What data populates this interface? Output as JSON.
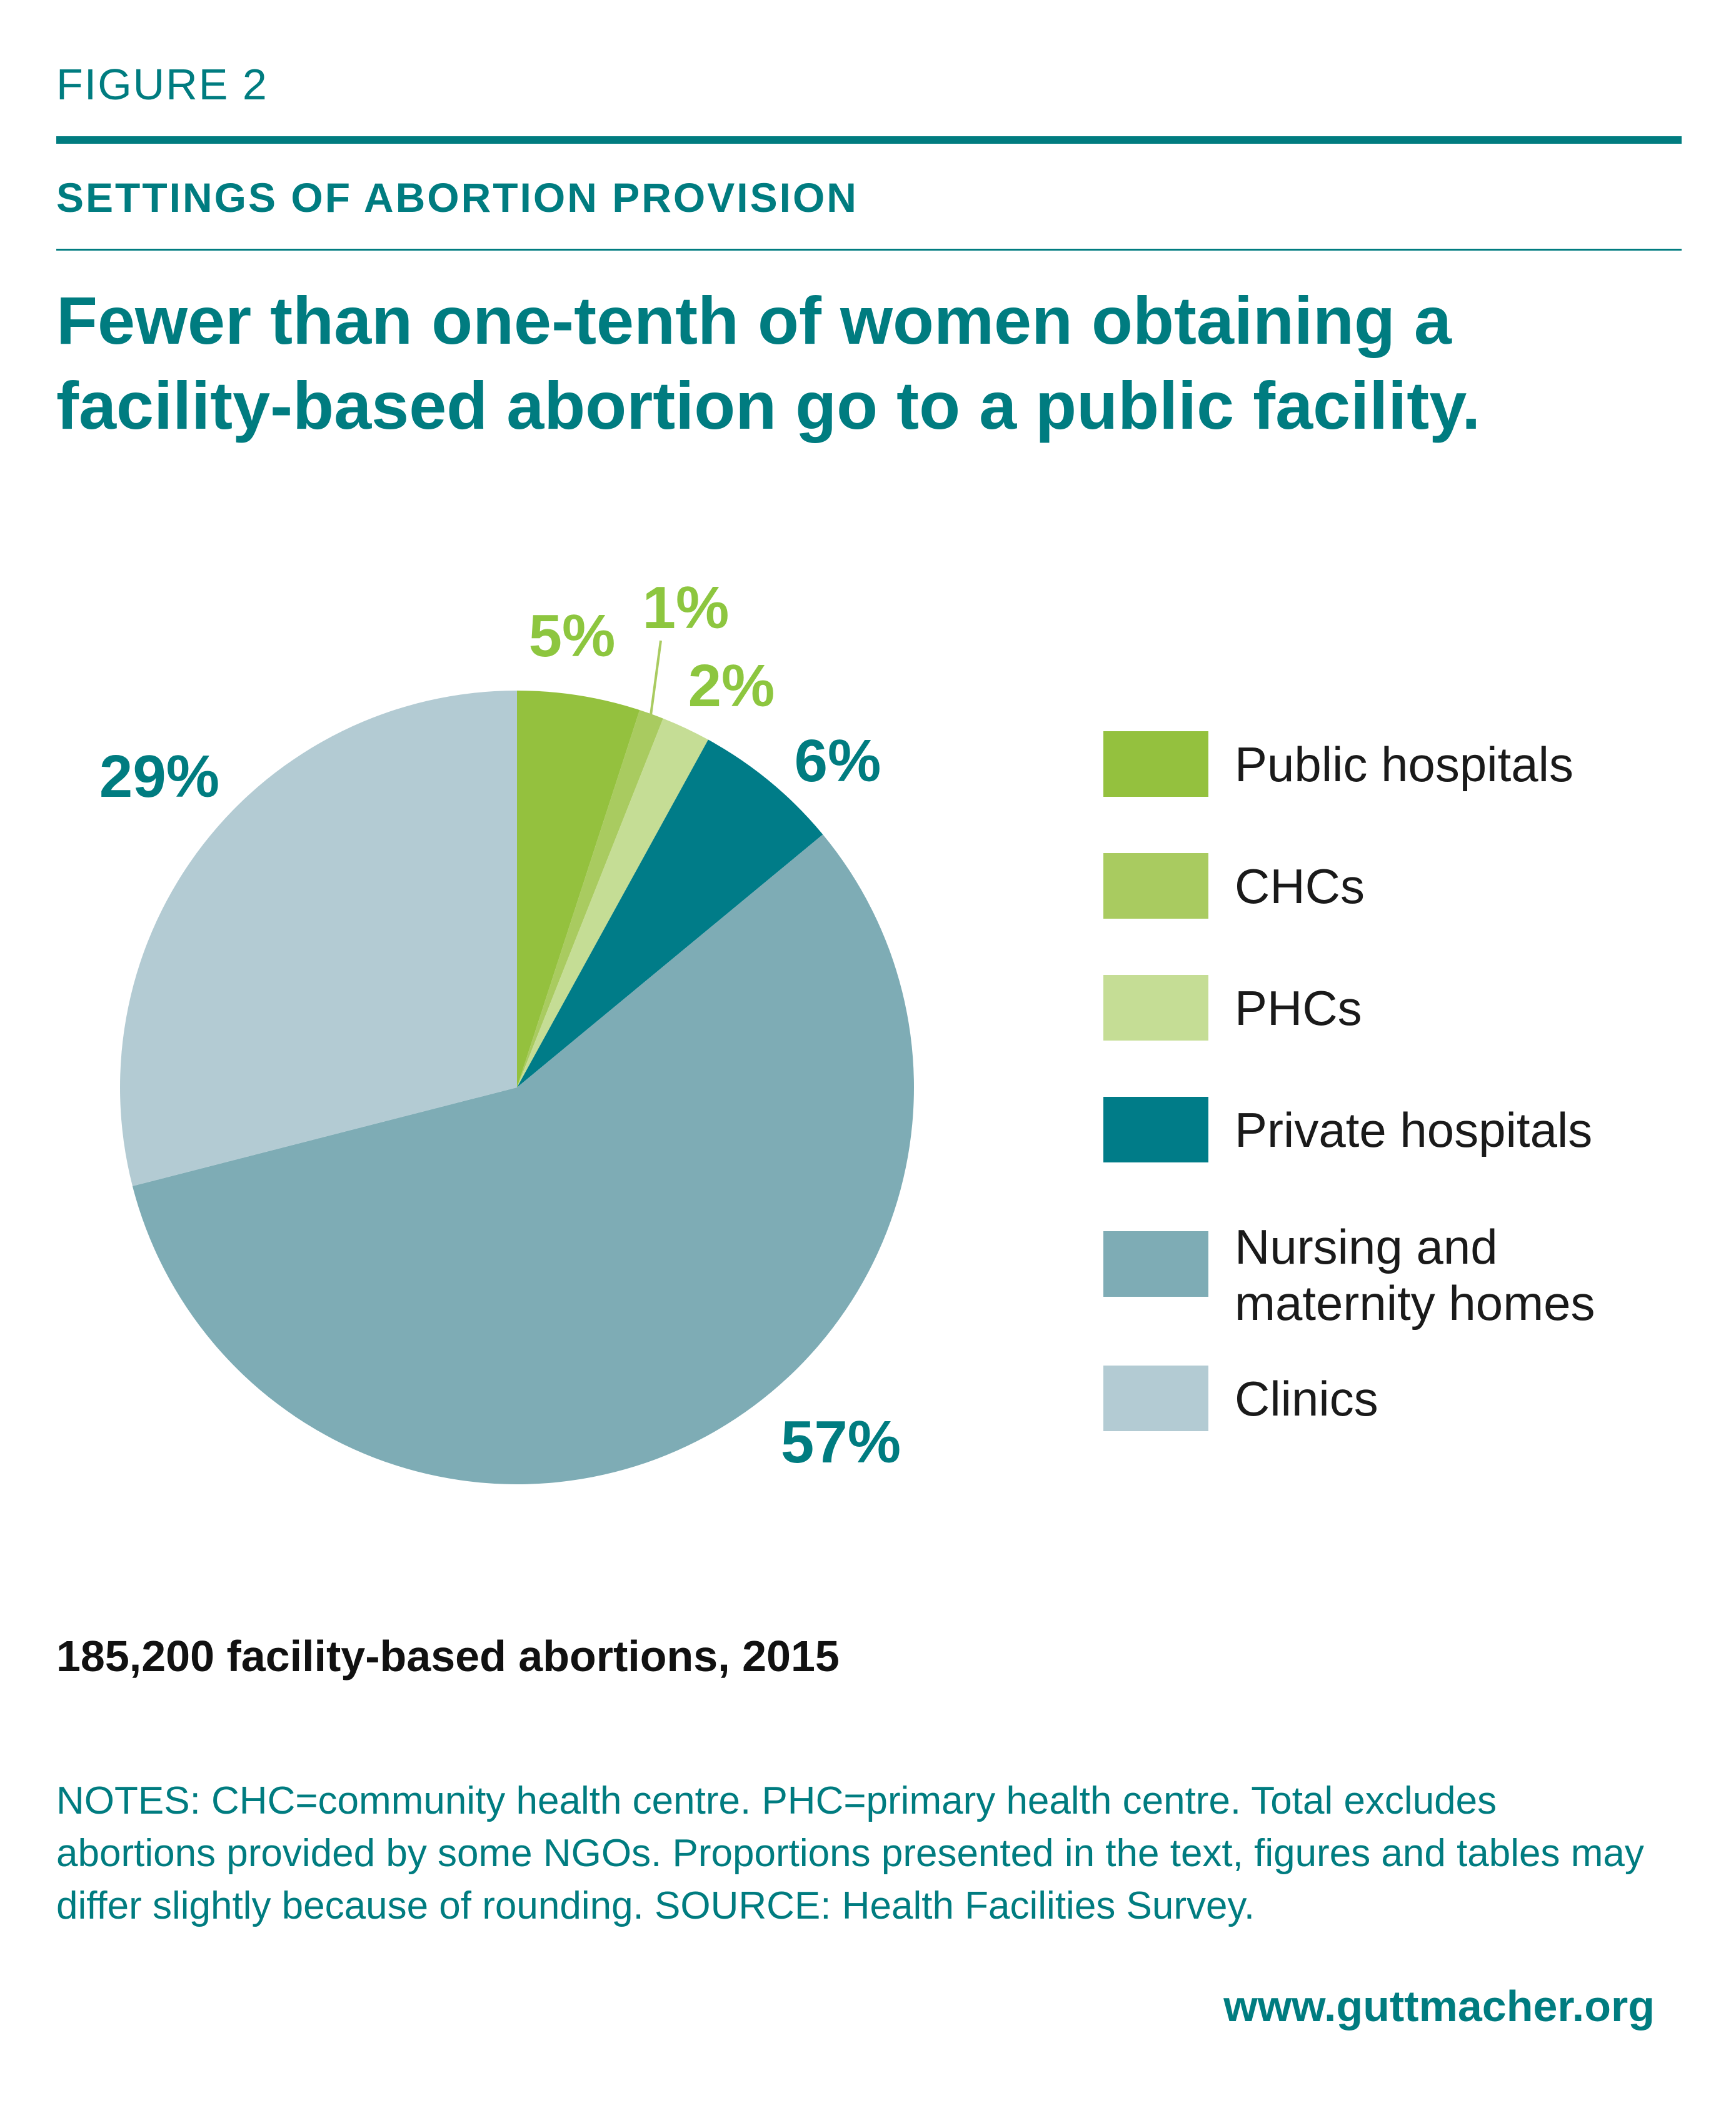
{
  "figure_label": "FIGURE 2",
  "section_title": "SETTINGS OF ABORTION PROVISION",
  "headline": "Fewer than one-tenth of women obtaining a facility-based abortion go to a public facility.",
  "subtitle": "185,200 facility-based abortions, 2015",
  "notes": "NOTES: CHC=community health centre. PHC=primary health centre. Total excludes abortions provided by some NGOs. Proportions presented in the text, figures and tables may differ slightly because of rounding. SOURCE: Health Facilities Survey.",
  "website": "www.guttmacher.org",
  "chart_data": {
    "type": "pie",
    "title": "",
    "legend_position": "right",
    "slices": [
      {
        "name": "Public hospitals",
        "value": 5,
        "label": "5%",
        "color": "#94c13e",
        "label_color": "#8dc63f"
      },
      {
        "name": "CHCs",
        "value": 1,
        "label": "1%",
        "color": "#a9cb60",
        "label_color": "#8dc63f"
      },
      {
        "name": "PHCs",
        "value": 2,
        "label": "2%",
        "color": "#c5dd95",
        "label_color": "#8dc63f"
      },
      {
        "name": "Private hospitals",
        "value": 6,
        "label": "6%",
        "color": "#007c88",
        "label_color": "#007c80"
      },
      {
        "name": "Nursing and maternity homes",
        "value": 57,
        "label": "57%",
        "color": "#7eacb5",
        "label_color": "#007c80"
      },
      {
        "name": "Clinics",
        "value": 29,
        "label": "29%",
        "color": "#b3cbd3",
        "label_color": "#007c80"
      }
    ]
  }
}
